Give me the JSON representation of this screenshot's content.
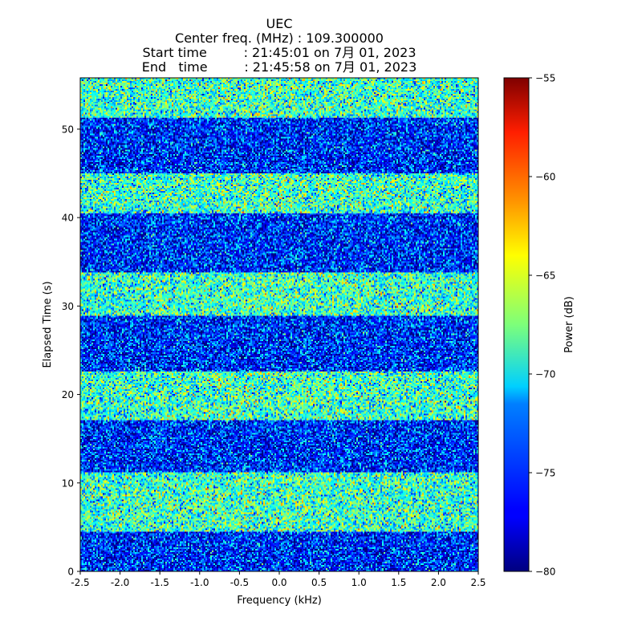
{
  "chart_data": {
    "type": "heatmap",
    "title_lines": [
      "UEC",
      "Center freq. (MHz) : 109.300000",
      "Start time         : 21:45:01 on 7月 01, 2023",
      "End   time         : 21:45:58 on 7月 01, 2023"
    ],
    "xlabel": "Frequency (kHz)",
    "ylabel": "Elapsed Time (s)",
    "xlim": [
      -2.5,
      2.5
    ],
    "ylim": [
      0,
      55.8
    ],
    "xticks": [
      -2.5,
      -2.0,
      -1.5,
      -1.0,
      -0.5,
      0.0,
      0.5,
      1.0,
      1.5,
      2.0,
      2.5
    ],
    "xtick_labels": [
      "-2.5",
      "-2.0",
      "-1.5",
      "-1.0",
      "-0.5",
      "0.0",
      "0.5",
      "1.0",
      "1.5",
      "2.0",
      "2.5"
    ],
    "yticks": [
      0,
      10,
      20,
      30,
      40,
      50
    ],
    "ytick_labels": [
      "0",
      "10",
      "20",
      "30",
      "40",
      "50"
    ],
    "colormap": "jet",
    "colorbar": {
      "label": "Power (dB)",
      "range": [
        -80,
        -55
      ],
      "ticks": [
        -80,
        -75,
        -70,
        -65,
        -60,
        -55
      ],
      "tick_labels": [
        "−80",
        "−75",
        "−70",
        "−65",
        "−60",
        "−55"
      ]
    },
    "bands": [
      {
        "t_start": 0.0,
        "t_end": 4.5,
        "level": "low",
        "mean_db": -76
      },
      {
        "t_start": 4.5,
        "t_end": 11.2,
        "level": "high",
        "mean_db": -70
      },
      {
        "t_start": 11.2,
        "t_end": 17.1,
        "level": "low",
        "mean_db": -76
      },
      {
        "t_start": 17.1,
        "t_end": 22.6,
        "level": "high",
        "mean_db": -70
      },
      {
        "t_start": 22.6,
        "t_end": 28.9,
        "level": "low",
        "mean_db": -76
      },
      {
        "t_start": 28.9,
        "t_end": 33.8,
        "level": "high",
        "mean_db": -70
      },
      {
        "t_start": 33.8,
        "t_end": 40.5,
        "level": "low",
        "mean_db": -76
      },
      {
        "t_start": 40.5,
        "t_end": 45.0,
        "level": "high",
        "mean_db": -70
      },
      {
        "t_start": 45.0,
        "t_end": 51.3,
        "level": "low",
        "mean_db": -76
      },
      {
        "t_start": 51.3,
        "t_end": 55.8,
        "level": "high",
        "mean_db": -70
      }
    ]
  }
}
